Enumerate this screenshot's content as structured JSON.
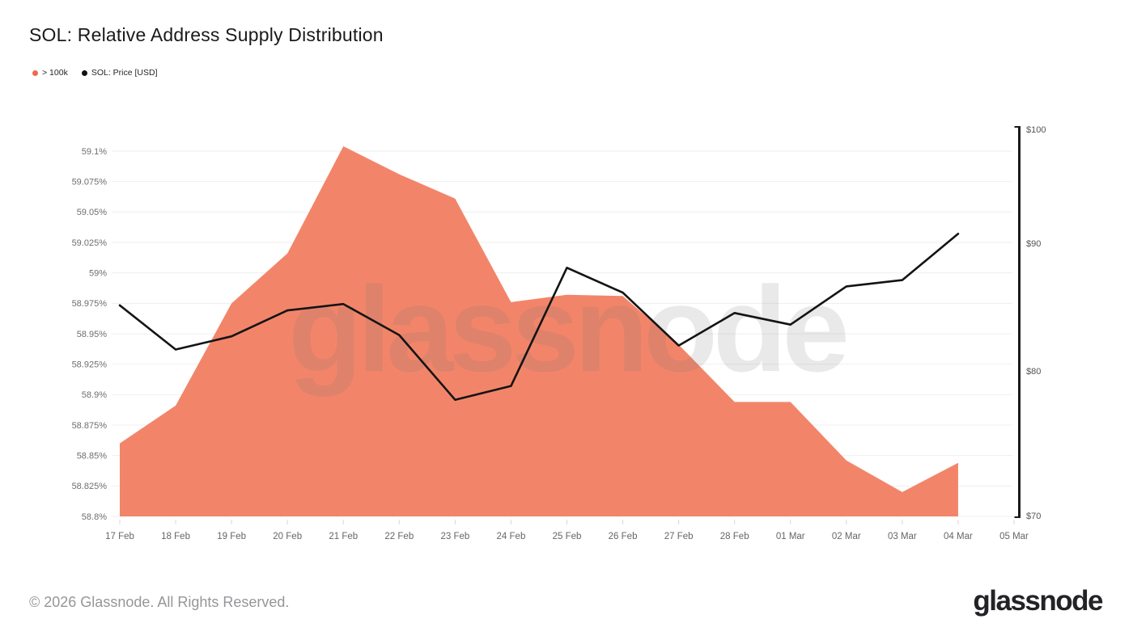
{
  "header": {
    "title": "SOL: Relative Address Supply Distribution"
  },
  "legend": [
    {
      "label": "> 100k",
      "color": "#ee6a4c",
      "series": "area"
    },
    {
      "label": "SOL: Price [USD]",
      "color": "#111111",
      "series": "line"
    }
  ],
  "watermark": "glassnode",
  "footer": {
    "copyright": "© 2026 Glassnode. All Rights Reserved.",
    "logo": "glassnode"
  },
  "colors": {
    "area_fill": "#f28569",
    "price_line": "#141414",
    "gridline": "#efefef",
    "axis_label": "#6e6e6e",
    "right_axis_line": "#1a1a1a",
    "x_tick": "#d8d8d8"
  },
  "chart_data": {
    "type": "area",
    "title": "SOL: Relative Address Supply Distribution",
    "categories": [
      "17 Feb",
      "18 Feb",
      "19 Feb",
      "20 Feb",
      "21 Feb",
      "22 Feb",
      "23 Feb",
      "24 Feb",
      "25 Feb",
      "26 Feb",
      "27 Feb",
      "28 Feb",
      "01 Mar",
      "02 Mar",
      "03 Mar",
      "04 Mar",
      "05 Mar"
    ],
    "series": [
      {
        "name": "> 100k",
        "type": "area",
        "axis": "left",
        "unit": "%",
        "values": [
          58.86,
          58.891,
          58.975,
          59.016,
          59.104,
          59.081,
          59.061,
          58.976,
          58.982,
          58.981,
          58.941,
          58.894,
          58.894,
          58.846,
          58.82,
          58.844,
          null
        ]
      },
      {
        "name": "SOL: Price [USD]",
        "type": "line",
        "axis": "right",
        "unit": "USD",
        "values": [
          85.0,
          81.6,
          82.6,
          84.6,
          85.1,
          82.7,
          77.9,
          78.9,
          88.0,
          86.0,
          81.9,
          84.4,
          83.5,
          86.5,
          87.0,
          90.8,
          null
        ]
      }
    ],
    "left_axis": {
      "scale": "linear",
      "min": 58.8,
      "max": 59.1,
      "ticks": [
        {
          "value": 58.8,
          "label": "58.8%"
        },
        {
          "value": 58.825,
          "label": "58.825%"
        },
        {
          "value": 58.85,
          "label": "58.85%"
        },
        {
          "value": 58.875,
          "label": "58.875%"
        },
        {
          "value": 58.9,
          "label": "58.9%"
        },
        {
          "value": 58.925,
          "label": "58.925%"
        },
        {
          "value": 58.95,
          "label": "58.95%"
        },
        {
          "value": 58.975,
          "label": "58.975%"
        },
        {
          "value": 59,
          "label": "59%"
        },
        {
          "value": 59.025,
          "label": "59.025%"
        },
        {
          "value": 59.05,
          "label": "59.05%"
        },
        {
          "value": 59.075,
          "label": "59.075%"
        },
        {
          "value": 59.1,
          "label": "59.1%"
        }
      ]
    },
    "right_axis": {
      "scale": "log",
      "min": 70,
      "max": 100,
      "ticks": [
        {
          "value": 70,
          "label": "$70"
        },
        {
          "value": 80,
          "label": "$80"
        },
        {
          "value": 90,
          "label": "$90"
        },
        {
          "value": 100,
          "label": "$100"
        }
      ]
    },
    "grid": "horizontal",
    "legend_position": "top-left"
  }
}
